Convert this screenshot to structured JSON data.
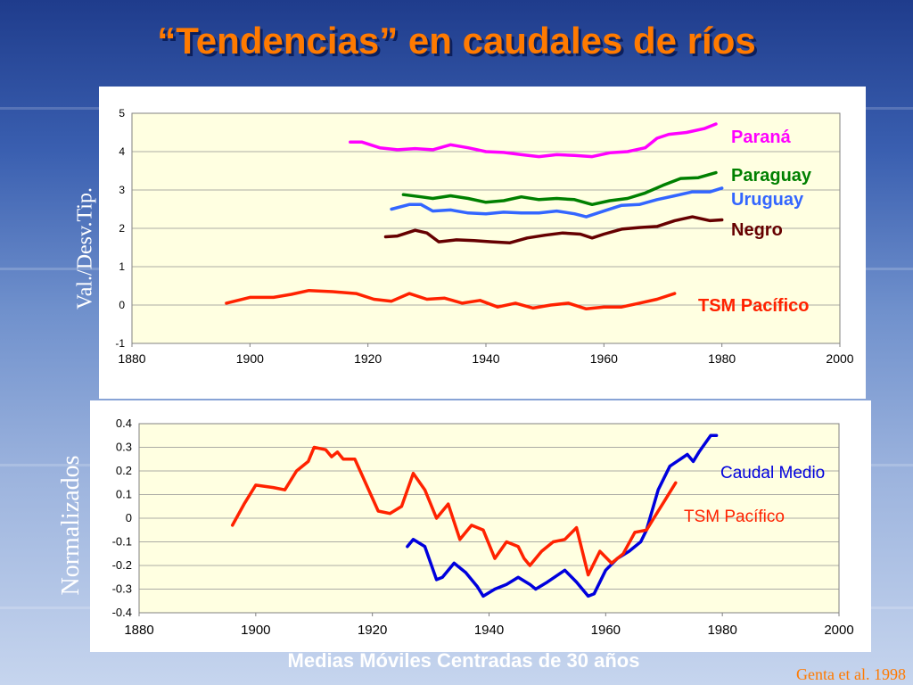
{
  "title": "“Tendencias” en caudales de ríos",
  "source": "Genta et al.  1998",
  "bottom_caption": "Medias Móviles Centradas de 30 años",
  "colors": {
    "title": "#ff7a00",
    "plot_bg": "#ffffe1",
    "parana": "#ff00ff",
    "paraguay": "#008000",
    "uruguay": "#3366ff",
    "negro": "#660000",
    "tsm": "#ff2200",
    "caudal": "#0000dd"
  },
  "chart_data": [
    {
      "type": "line",
      "ylabel": "Val./Desv.Tip.",
      "xlim": [
        1880,
        2000
      ],
      "ylim": [
        -1,
        5
      ],
      "x_ticks": [
        "1880",
        "1900",
        "1920",
        "1940",
        "1960",
        "1980",
        "2000"
      ],
      "y_ticks": [
        "-1",
        "0",
        "1",
        "2",
        "3",
        "4",
        "5"
      ],
      "grid": true,
      "series": [
        {
          "name": "Paraná",
          "color": "#ff00ff",
          "x": [
            1917,
            1919,
            1922,
            1925,
            1928,
            1931,
            1934,
            1937,
            1940,
            1943,
            1946,
            1949,
            1952,
            1955,
            1958,
            1961,
            1964,
            1967,
            1969,
            1971,
            1974,
            1977,
            1979
          ],
          "y": [
            4.25,
            4.25,
            4.1,
            4.05,
            4.08,
            4.05,
            4.18,
            4.1,
            4.0,
            3.98,
            3.92,
            3.87,
            3.92,
            3.9,
            3.87,
            3.97,
            4.0,
            4.1,
            4.35,
            4.45,
            4.5,
            4.6,
            4.72
          ]
        },
        {
          "name": "Paraguay",
          "color": "#008000",
          "x": [
            1926,
            1929,
            1931,
            1934,
            1937,
            1940,
            1943,
            1946,
            1949,
            1952,
            1955,
            1958,
            1961,
            1964,
            1967,
            1970,
            1973,
            1976,
            1979
          ],
          "y": [
            2.88,
            2.82,
            2.78,
            2.85,
            2.78,
            2.68,
            2.72,
            2.82,
            2.75,
            2.78,
            2.75,
            2.62,
            2.72,
            2.78,
            2.92,
            3.12,
            3.3,
            3.32,
            3.45
          ]
        },
        {
          "name": "Uruguay",
          "color": "#3366ff",
          "x": [
            1924,
            1927,
            1929,
            1931,
            1934,
            1937,
            1940,
            1943,
            1946,
            1949,
            1952,
            1955,
            1957,
            1960,
            1963,
            1966,
            1969,
            1972,
            1975,
            1978,
            1980
          ],
          "y": [
            2.5,
            2.62,
            2.62,
            2.45,
            2.48,
            2.4,
            2.38,
            2.42,
            2.4,
            2.4,
            2.45,
            2.38,
            2.3,
            2.45,
            2.6,
            2.62,
            2.75,
            2.85,
            2.95,
            2.95,
            3.05
          ]
        },
        {
          "name": "Negro",
          "color": "#660000",
          "x": [
            1923,
            1925,
            1928,
            1930,
            1932,
            1935,
            1938,
            1941,
            1944,
            1947,
            1950,
            1953,
            1956,
            1958,
            1960,
            1963,
            1966,
            1969,
            1972,
            1975,
            1978,
            1980
          ],
          "y": [
            1.78,
            1.8,
            1.95,
            1.88,
            1.65,
            1.7,
            1.68,
            1.65,
            1.62,
            1.75,
            1.82,
            1.88,
            1.85,
            1.75,
            1.85,
            1.98,
            2.02,
            2.05,
            2.2,
            2.3,
            2.2,
            2.22
          ]
        },
        {
          "name": "TSM Pacífico",
          "color": "#ff2200",
          "x": [
            1896,
            1900,
            1904,
            1907,
            1910,
            1914,
            1918,
            1921,
            1924,
            1927,
            1930,
            1933,
            1936,
            1939,
            1942,
            1945,
            1948,
            1951,
            1954,
            1957,
            1960,
            1963,
            1966,
            1969,
            1972
          ],
          "y": [
            0.05,
            0.2,
            0.2,
            0.28,
            0.38,
            0.35,
            0.3,
            0.15,
            0.1,
            0.3,
            0.15,
            0.18,
            0.05,
            0.12,
            -0.05,
            0.05,
            -0.08,
            0.0,
            0.05,
            -0.1,
            -0.05,
            -0.05,
            0.05,
            0.15,
            0.3
          ]
        }
      ]
    },
    {
      "type": "line",
      "ylabel": "Normalizados",
      "xlim": [
        1880,
        2000
      ],
      "ylim": [
        -0.4,
        0.4
      ],
      "x_ticks": [
        "1880",
        "1900",
        "1920",
        "1940",
        "1960",
        "1980",
        "2000"
      ],
      "y_ticks": [
        "0.4",
        "0.3",
        "0.2",
        "0.1",
        "0",
        "-0.1",
        "-0.2",
        "-0.3",
        "-0.4"
      ],
      "grid": true,
      "series": [
        {
          "name": "Caudal Medio",
          "color": "#0000dd",
          "x": [
            1926,
            1927,
            1929,
            1931,
            1932,
            1934,
            1936,
            1938,
            1939,
            1941,
            1943,
            1945,
            1947,
            1948,
            1950,
            1953,
            1955,
            1957,
            1958,
            1960,
            1962,
            1964,
            1966,
            1967,
            1969,
            1971,
            1974,
            1975,
            1976,
            1978,
            1979
          ],
          "y": [
            -0.12,
            -0.09,
            -0.12,
            -0.26,
            -0.25,
            -0.19,
            -0.23,
            -0.29,
            -0.33,
            -0.3,
            -0.28,
            -0.25,
            -0.28,
            -0.3,
            -0.27,
            -0.22,
            -0.27,
            -0.33,
            -0.32,
            -0.22,
            -0.17,
            -0.14,
            -0.1,
            -0.05,
            0.12,
            0.22,
            0.27,
            0.24,
            0.28,
            0.35,
            0.35
          ]
        },
        {
          "name": "TSM Pacífico",
          "color": "#ff2200",
          "x": [
            1896,
            1898,
            1900,
            1903,
            1905,
            1907,
            1909,
            1910,
            1912,
            1913,
            1914,
            1915,
            1917,
            1919,
            1921,
            1923,
            1925,
            1927,
            1929,
            1931,
            1933,
            1935,
            1937,
            1939,
            1941,
            1943,
            1945,
            1946,
            1947,
            1949,
            1951,
            1953,
            1955,
            1957,
            1959,
            1961,
            1963,
            1965,
            1967,
            1969,
            1970,
            1972
          ],
          "y": [
            -0.03,
            0.06,
            0.14,
            0.13,
            0.12,
            0.2,
            0.24,
            0.3,
            0.29,
            0.26,
            0.28,
            0.25,
            0.25,
            0.14,
            0.03,
            0.02,
            0.05,
            0.19,
            0.12,
            0.0,
            0.06,
            -0.09,
            -0.03,
            -0.05,
            -0.17,
            -0.1,
            -0.12,
            -0.17,
            -0.2,
            -0.14,
            -0.1,
            -0.09,
            -0.04,
            -0.24,
            -0.14,
            -0.19,
            -0.15,
            -0.06,
            -0.05,
            0.03,
            0.07,
            0.15
          ]
        }
      ]
    }
  ],
  "labels_top": [
    "Paraná",
    "Paraguay",
    "Uruguay",
    "Negro",
    "TSM Pacífico"
  ],
  "labels_bottom": [
    "Caudal Medio",
    "TSM Pacífico"
  ]
}
